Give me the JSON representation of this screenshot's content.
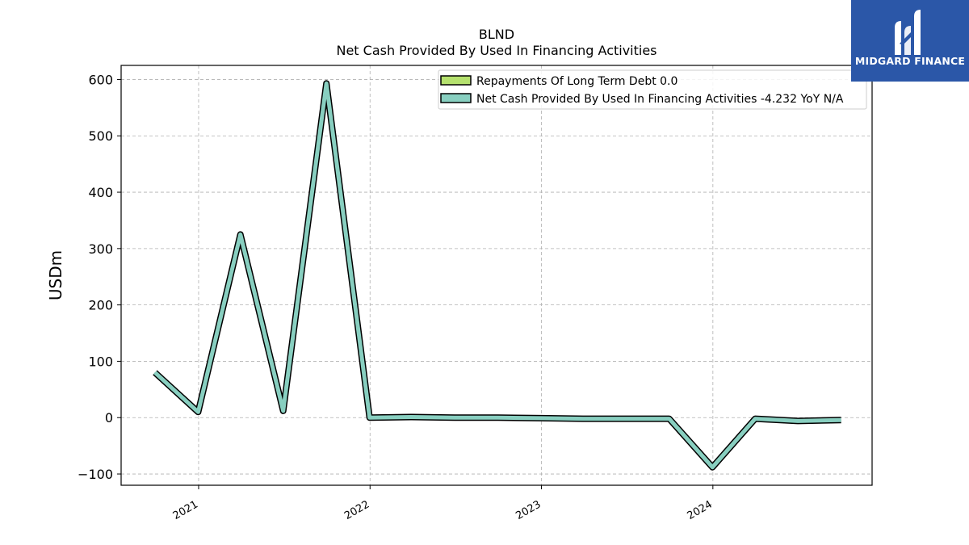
{
  "brand": {
    "name": "MIDGARD FINANCE",
    "color": "#2b57a8"
  },
  "chart_data": {
    "type": "line",
    "title": "BLND",
    "subtitle": "Net Cash Provided By Used In Financing Activities",
    "xlabel": "",
    "ylabel": "USDm",
    "ylim": [
      -120,
      625
    ],
    "xlim": [
      "2020-07-20",
      "2024-12-05"
    ],
    "yticks": [
      -100,
      0,
      100,
      200,
      300,
      400,
      500,
      600
    ],
    "yticklabels": [
      "−100",
      "0",
      "100",
      "200",
      "300",
      "400",
      "500",
      "600"
    ],
    "xticks": [
      "2021-01-01",
      "2022-01-01",
      "2023-01-01",
      "2024-01-01"
    ],
    "xticklabels": [
      "2021",
      "2022",
      "2023",
      "2024"
    ],
    "grid": true,
    "legend_position": "top-right",
    "series": [
      {
        "name": "Repayments Of Long Term Debt",
        "legend_label": "Repayments Of Long Term Debt  0.0",
        "color": "#b5e16e",
        "x": [],
        "y": []
      },
      {
        "name": "Net Cash Provided By Used In Financing Activities",
        "legend_label": "Net Cash Provided By Used In Financing Activities  -4.232 YoY N/A",
        "color": "#88cfc0",
        "x": [
          "2020-09-30",
          "2020-12-31",
          "2021-03-31",
          "2021-06-30",
          "2021-09-30",
          "2021-12-31",
          "2022-03-31",
          "2022-06-30",
          "2022-09-30",
          "2022-12-31",
          "2023-03-31",
          "2023-06-30",
          "2023-09-30",
          "2023-12-31",
          "2024-03-31",
          "2024-06-30",
          "2024-09-30"
        ],
        "y": [
          80,
          10,
          325,
          12,
          593,
          0,
          1,
          0,
          0,
          -1,
          -2,
          -2,
          -2,
          -88,
          -2,
          -6,
          -4.232
        ]
      }
    ]
  }
}
